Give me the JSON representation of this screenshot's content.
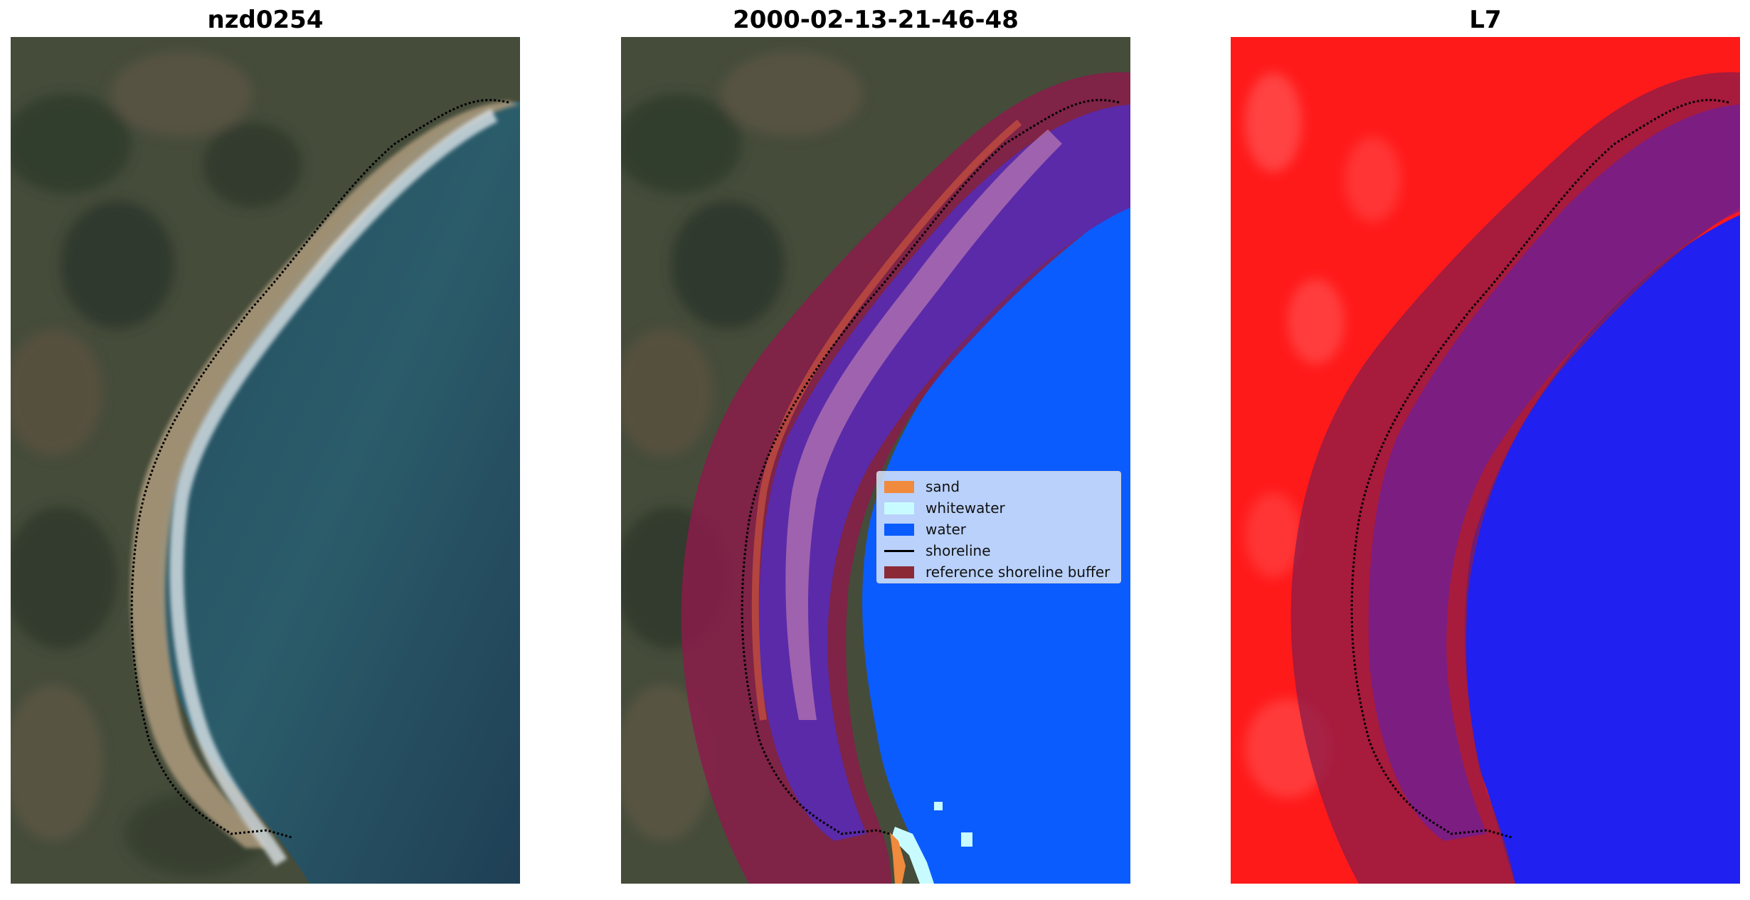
{
  "panels": [
    {
      "title": "nzd0254",
      "content": "RGB satellite image of a curved beach with dotted shoreline"
    },
    {
      "title": "2000-02-13-21-46-48",
      "content": "classification overlay"
    },
    {
      "title": "L7",
      "content": "water index map with shoreline buffer"
    }
  ],
  "legend": {
    "items": [
      {
        "label": "sand",
        "color": "#f08a3c"
      },
      {
        "label": "whitewater",
        "color": "#c8fbff"
      },
      {
        "label": "water",
        "color": "#0a5cff"
      },
      {
        "label": "shoreline",
        "color": "#000000"
      },
      {
        "label": "reference shoreline buffer",
        "color": "#8b2a36"
      }
    ]
  },
  "colors": {
    "land": "#4a4f3c",
    "sea": "#2a5a6e",
    "beach": "#b8a582",
    "buffer": "#8a1c4a",
    "index_land": "#ff1a1a",
    "index_water": "#2020f0"
  }
}
